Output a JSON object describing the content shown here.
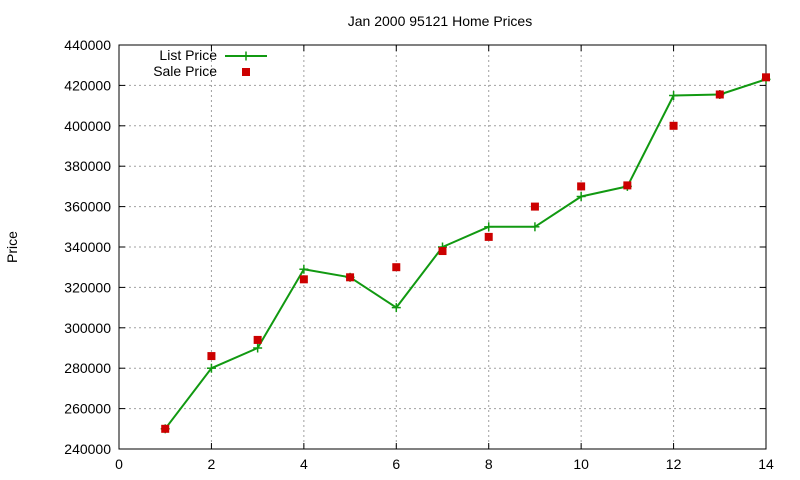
{
  "chart_data": {
    "type": "line",
    "title": "Jan 2000 95121 Home Prices",
    "xlabel": "",
    "ylabel": "Price",
    "xlim": [
      0,
      14
    ],
    "ylim": [
      240000,
      440000
    ],
    "xticks": [
      0,
      2,
      4,
      6,
      8,
      10,
      12,
      14
    ],
    "yticks": [
      240000,
      260000,
      280000,
      300000,
      320000,
      340000,
      360000,
      380000,
      400000,
      420000,
      440000
    ],
    "grid": true,
    "legend_position": "top-left",
    "series": [
      {
        "name": "List Price",
        "style": "line-plus",
        "color": "#119911",
        "x": [
          1,
          2,
          3,
          4,
          5,
          6,
          7,
          8,
          9,
          10,
          11,
          12,
          13,
          14
        ],
        "y": [
          250000,
          280000,
          290000,
          329000,
          325000,
          310000,
          340000,
          350000,
          350000,
          365000,
          370000,
          415000,
          415500,
          423000
        ]
      },
      {
        "name": "Sale Price",
        "style": "square-points",
        "color": "#cc0000",
        "x": [
          1,
          2,
          3,
          4,
          5,
          6,
          7,
          8,
          9,
          10,
          11,
          12,
          13,
          14
        ],
        "y": [
          250000,
          286000,
          294000,
          324000,
          325000,
          330000,
          338000,
          345000,
          360000,
          370000,
          370500,
          400000,
          415500,
          424000
        ]
      }
    ]
  }
}
